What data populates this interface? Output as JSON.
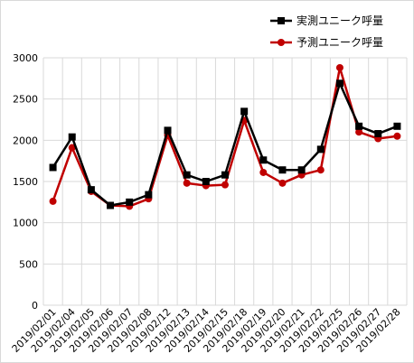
{
  "chart_data": {
    "type": "line",
    "title": "",
    "xlabel": "",
    "ylabel": "",
    "categories": [
      "2019/02/01",
      "2019/02/04",
      "2019/02/05",
      "2019/02/06",
      "2019/02/07",
      "2019/02/08",
      "2019/02/12",
      "2019/02/13",
      "2019/02/14",
      "2019/02/15",
      "2019/02/18",
      "2019/02/19",
      "2019/02/20",
      "2019/02/21",
      "2019/02/22",
      "2019/02/25",
      "2019/02/26",
      "2019/02/27",
      "2019/02/28"
    ],
    "ylim": [
      0,
      3000
    ],
    "yticks": [
      0,
      500,
      1000,
      1500,
      2000,
      2500,
      3000
    ],
    "grid": true,
    "legend_position": "top-right",
    "series": [
      {
        "name": "実測ユニーク呼量",
        "color": "#000000",
        "marker": "square",
        "values": [
          1670,
          2040,
          1400,
          1210,
          1250,
          1340,
          2120,
          1580,
          1500,
          1580,
          2350,
          1760,
          1640,
          1640,
          1890,
          2690,
          2170,
          2080,
          2170
        ]
      },
      {
        "name": "予測ユニーク呼量",
        "color": "#c00000",
        "marker": "circle",
        "values": [
          1260,
          1910,
          1380,
          1210,
          1200,
          1290,
          2060,
          1480,
          1450,
          1460,
          2240,
          1610,
          1480,
          1580,
          1640,
          2880,
          2100,
          2020,
          2050
        ]
      }
    ]
  }
}
